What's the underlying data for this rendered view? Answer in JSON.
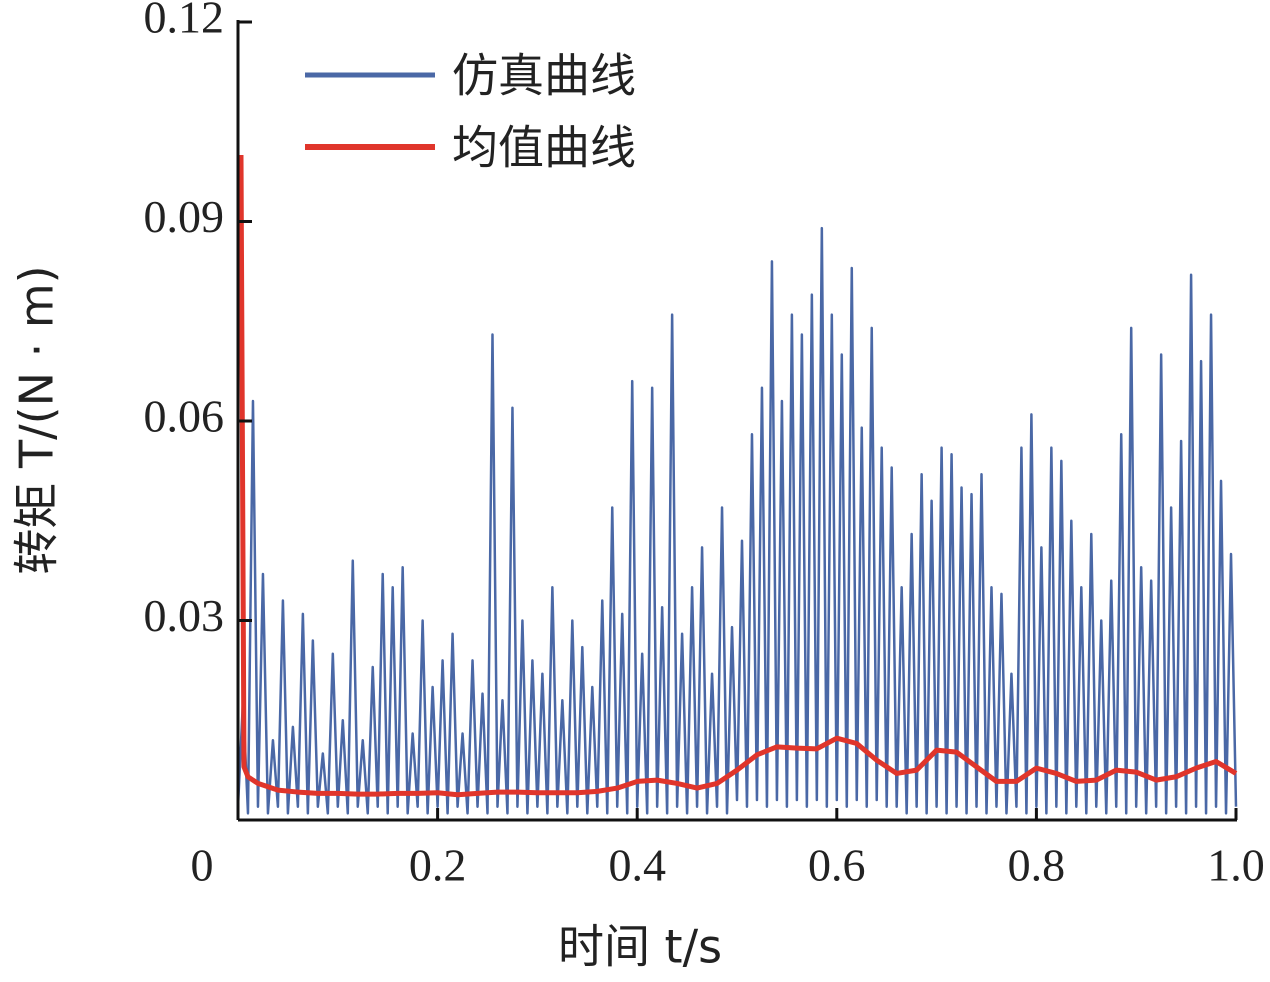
{
  "chart_data": {
    "type": "line",
    "xlabel": "时间 t/s",
    "ylabel": "转矩 T/(N · m)",
    "xlim": [
      0,
      1
    ],
    "ylim": [
      0,
      0.12
    ],
    "xticks": [
      0,
      0.2,
      0.4,
      0.6,
      0.8,
      {
        "value": 1,
        "label": "1.0"
      }
    ],
    "yticks": [
      0.03,
      0.06,
      0.09,
      0.12
    ],
    "legend": "upper left",
    "series": [
      {
        "name": "仿真曲线",
        "color": "#4a68a6",
        "x": [
          0,
          0.005,
          0.01,
          0.015,
          0.02,
          0.025,
          0.03,
          0.035,
          0.04,
          0.045,
          0.05,
          0.055,
          0.06,
          0.065,
          0.07,
          0.075,
          0.08,
          0.085,
          0.09,
          0.095,
          0.1,
          0.105,
          0.11,
          0.115,
          0.12,
          0.125,
          0.13,
          0.135,
          0.14,
          0.145,
          0.15,
          0.155,
          0.16,
          0.165,
          0.17,
          0.175,
          0.18,
          0.185,
          0.19,
          0.195,
          0.2,
          0.205,
          0.21,
          0.215,
          0.22,
          0.225,
          0.23,
          0.235,
          0.24,
          0.245,
          0.25,
          0.255,
          0.26,
          0.265,
          0.27,
          0.275,
          0.28,
          0.285,
          0.29,
          0.295,
          0.3,
          0.305,
          0.31,
          0.315,
          0.32,
          0.325,
          0.33,
          0.335,
          0.34,
          0.345,
          0.35,
          0.355,
          0.36,
          0.365,
          0.37,
          0.375,
          0.38,
          0.385,
          0.39,
          0.395,
          0.4,
          0.405,
          0.41,
          0.415,
          0.42,
          0.425,
          0.43,
          0.435,
          0.44,
          0.445,
          0.45,
          0.455,
          0.46,
          0.465,
          0.47,
          0.475,
          0.48,
          0.485,
          0.49,
          0.495,
          0.5,
          0.505,
          0.51,
          0.515,
          0.52,
          0.525,
          0.53,
          0.535,
          0.54,
          0.545,
          0.55,
          0.555,
          0.56,
          0.565,
          0.57,
          0.575,
          0.58,
          0.585,
          0.59,
          0.595,
          0.6,
          0.605,
          0.61,
          0.615,
          0.62,
          0.625,
          0.63,
          0.635,
          0.64,
          0.645,
          0.65,
          0.655,
          0.66,
          0.665,
          0.67,
          0.675,
          0.68,
          0.685,
          0.69,
          0.695,
          0.7,
          0.705,
          0.71,
          0.715,
          0.72,
          0.725,
          0.73,
          0.735,
          0.74,
          0.745,
          0.75,
          0.755,
          0.76,
          0.765,
          0.77,
          0.775,
          0.78,
          0.785,
          0.79,
          0.795,
          0.8,
          0.805,
          0.81,
          0.815,
          0.82,
          0.825,
          0.83,
          0.835,
          0.84,
          0.845,
          0.85,
          0.855,
          0.86,
          0.865,
          0.87,
          0.875,
          0.88,
          0.885,
          0.89,
          0.895,
          0.9,
          0.905,
          0.91,
          0.915,
          0.92,
          0.925,
          0.93,
          0.935,
          0.94,
          0.945,
          0.95,
          0.955,
          0.96,
          0.965,
          0.97,
          0.975,
          0.98,
          0.985,
          0.99,
          0.995,
          1
        ],
        "values": [
          0.002,
          0.018,
          0.001,
          0.063,
          0.002,
          0.037,
          0.001,
          0.012,
          0.002,
          0.033,
          0.001,
          0.014,
          0.002,
          0.031,
          0.001,
          0.027,
          0.002,
          0.01,
          0.001,
          0.025,
          0.002,
          0.015,
          0.001,
          0.039,
          0.002,
          0.012,
          0.001,
          0.023,
          0.002,
          0.037,
          0.001,
          0.035,
          0.002,
          0.038,
          0.001,
          0.013,
          0.002,
          0.03,
          0.001,
          0.02,
          0.002,
          0.024,
          0.001,
          0.028,
          0.002,
          0.013,
          0.001,
          0.024,
          0.002,
          0.019,
          0.001,
          0.073,
          0.002,
          0.018,
          0.001,
          0.062,
          0.002,
          0.03,
          0.001,
          0.024,
          0.002,
          0.022,
          0.001,
          0.035,
          0.002,
          0.018,
          0.001,
          0.03,
          0.002,
          0.026,
          0.001,
          0.02,
          0.002,
          0.033,
          0.001,
          0.047,
          0.002,
          0.031,
          0.001,
          0.066,
          0.002,
          0.025,
          0.001,
          0.065,
          0.002,
          0.032,
          0.001,
          0.076,
          0.002,
          0.028,
          0.001,
          0.035,
          0.002,
          0.041,
          0.001,
          0.022,
          0.002,
          0.047,
          0.001,
          0.029,
          0.003,
          0.042,
          0.002,
          0.058,
          0.003,
          0.065,
          0.002,
          0.084,
          0.003,
          0.063,
          0.002,
          0.076,
          0.003,
          0.073,
          0.002,
          0.079,
          0.003,
          0.089,
          0.002,
          0.076,
          0.003,
          0.07,
          0.002,
          0.083,
          0.003,
          0.059,
          0.002,
          0.074,
          0.003,
          0.056,
          0.002,
          0.053,
          0.002,
          0.035,
          0.001,
          0.043,
          0.002,
          0.052,
          0.001,
          0.048,
          0.002,
          0.056,
          0.001,
          0.055,
          0.002,
          0.05,
          0.001,
          0.049,
          0.002,
          0.052,
          0.001,
          0.035,
          0.002,
          0.034,
          0.001,
          0.022,
          0.002,
          0.056,
          0.001,
          0.061,
          0.002,
          0.041,
          0.001,
          0.056,
          0.002,
          0.054,
          0.001,
          0.045,
          0.002,
          0.035,
          0.001,
          0.043,
          0.002,
          0.03,
          0.001,
          0.036,
          0.002,
          0.058,
          0.001,
          0.074,
          0.002,
          0.038,
          0.001,
          0.036,
          0.002,
          0.07,
          0.001,
          0.047,
          0.002,
          0.057,
          0.001,
          0.082,
          0.002,
          0.069,
          0.001,
          0.076,
          0.002,
          0.051,
          0.001,
          0.04,
          0.002
        ]
      },
      {
        "name": "均值曲线",
        "color": "#e0352b",
        "x": [
          0.003,
          0.006,
          0.01,
          0.02,
          0.04,
          0.06,
          0.08,
          0.1,
          0.12,
          0.14,
          0.16,
          0.18,
          0.2,
          0.22,
          0.24,
          0.26,
          0.28,
          0.3,
          0.32,
          0.34,
          0.36,
          0.38,
          0.4,
          0.42,
          0.44,
          0.46,
          0.48,
          0.5,
          0.52,
          0.54,
          0.56,
          0.58,
          0.6,
          0.62,
          0.64,
          0.66,
          0.68,
          0.7,
          0.72,
          0.74,
          0.76,
          0.78,
          0.8,
          0.82,
          0.84,
          0.86,
          0.88,
          0.9,
          0.92,
          0.94,
          0.96,
          0.98,
          1
        ],
        "values": [
          0.1,
          0.008,
          0.0065,
          0.0055,
          0.0045,
          0.0042,
          0.004,
          0.004,
          0.0039,
          0.0039,
          0.004,
          0.004,
          0.0041,
          0.0038,
          0.004,
          0.0042,
          0.0042,
          0.0041,
          0.0041,
          0.0041,
          0.0043,
          0.0048,
          0.0058,
          0.006,
          0.0055,
          0.0048,
          0.0055,
          0.0075,
          0.0098,
          0.011,
          0.0108,
          0.0107,
          0.0123,
          0.0115,
          0.009,
          0.007,
          0.0075,
          0.0105,
          0.0102,
          0.008,
          0.0058,
          0.0058,
          0.0078,
          0.007,
          0.0058,
          0.006,
          0.0075,
          0.0072,
          0.006,
          0.0065,
          0.0078,
          0.0088,
          0.007
        ]
      }
    ]
  }
}
